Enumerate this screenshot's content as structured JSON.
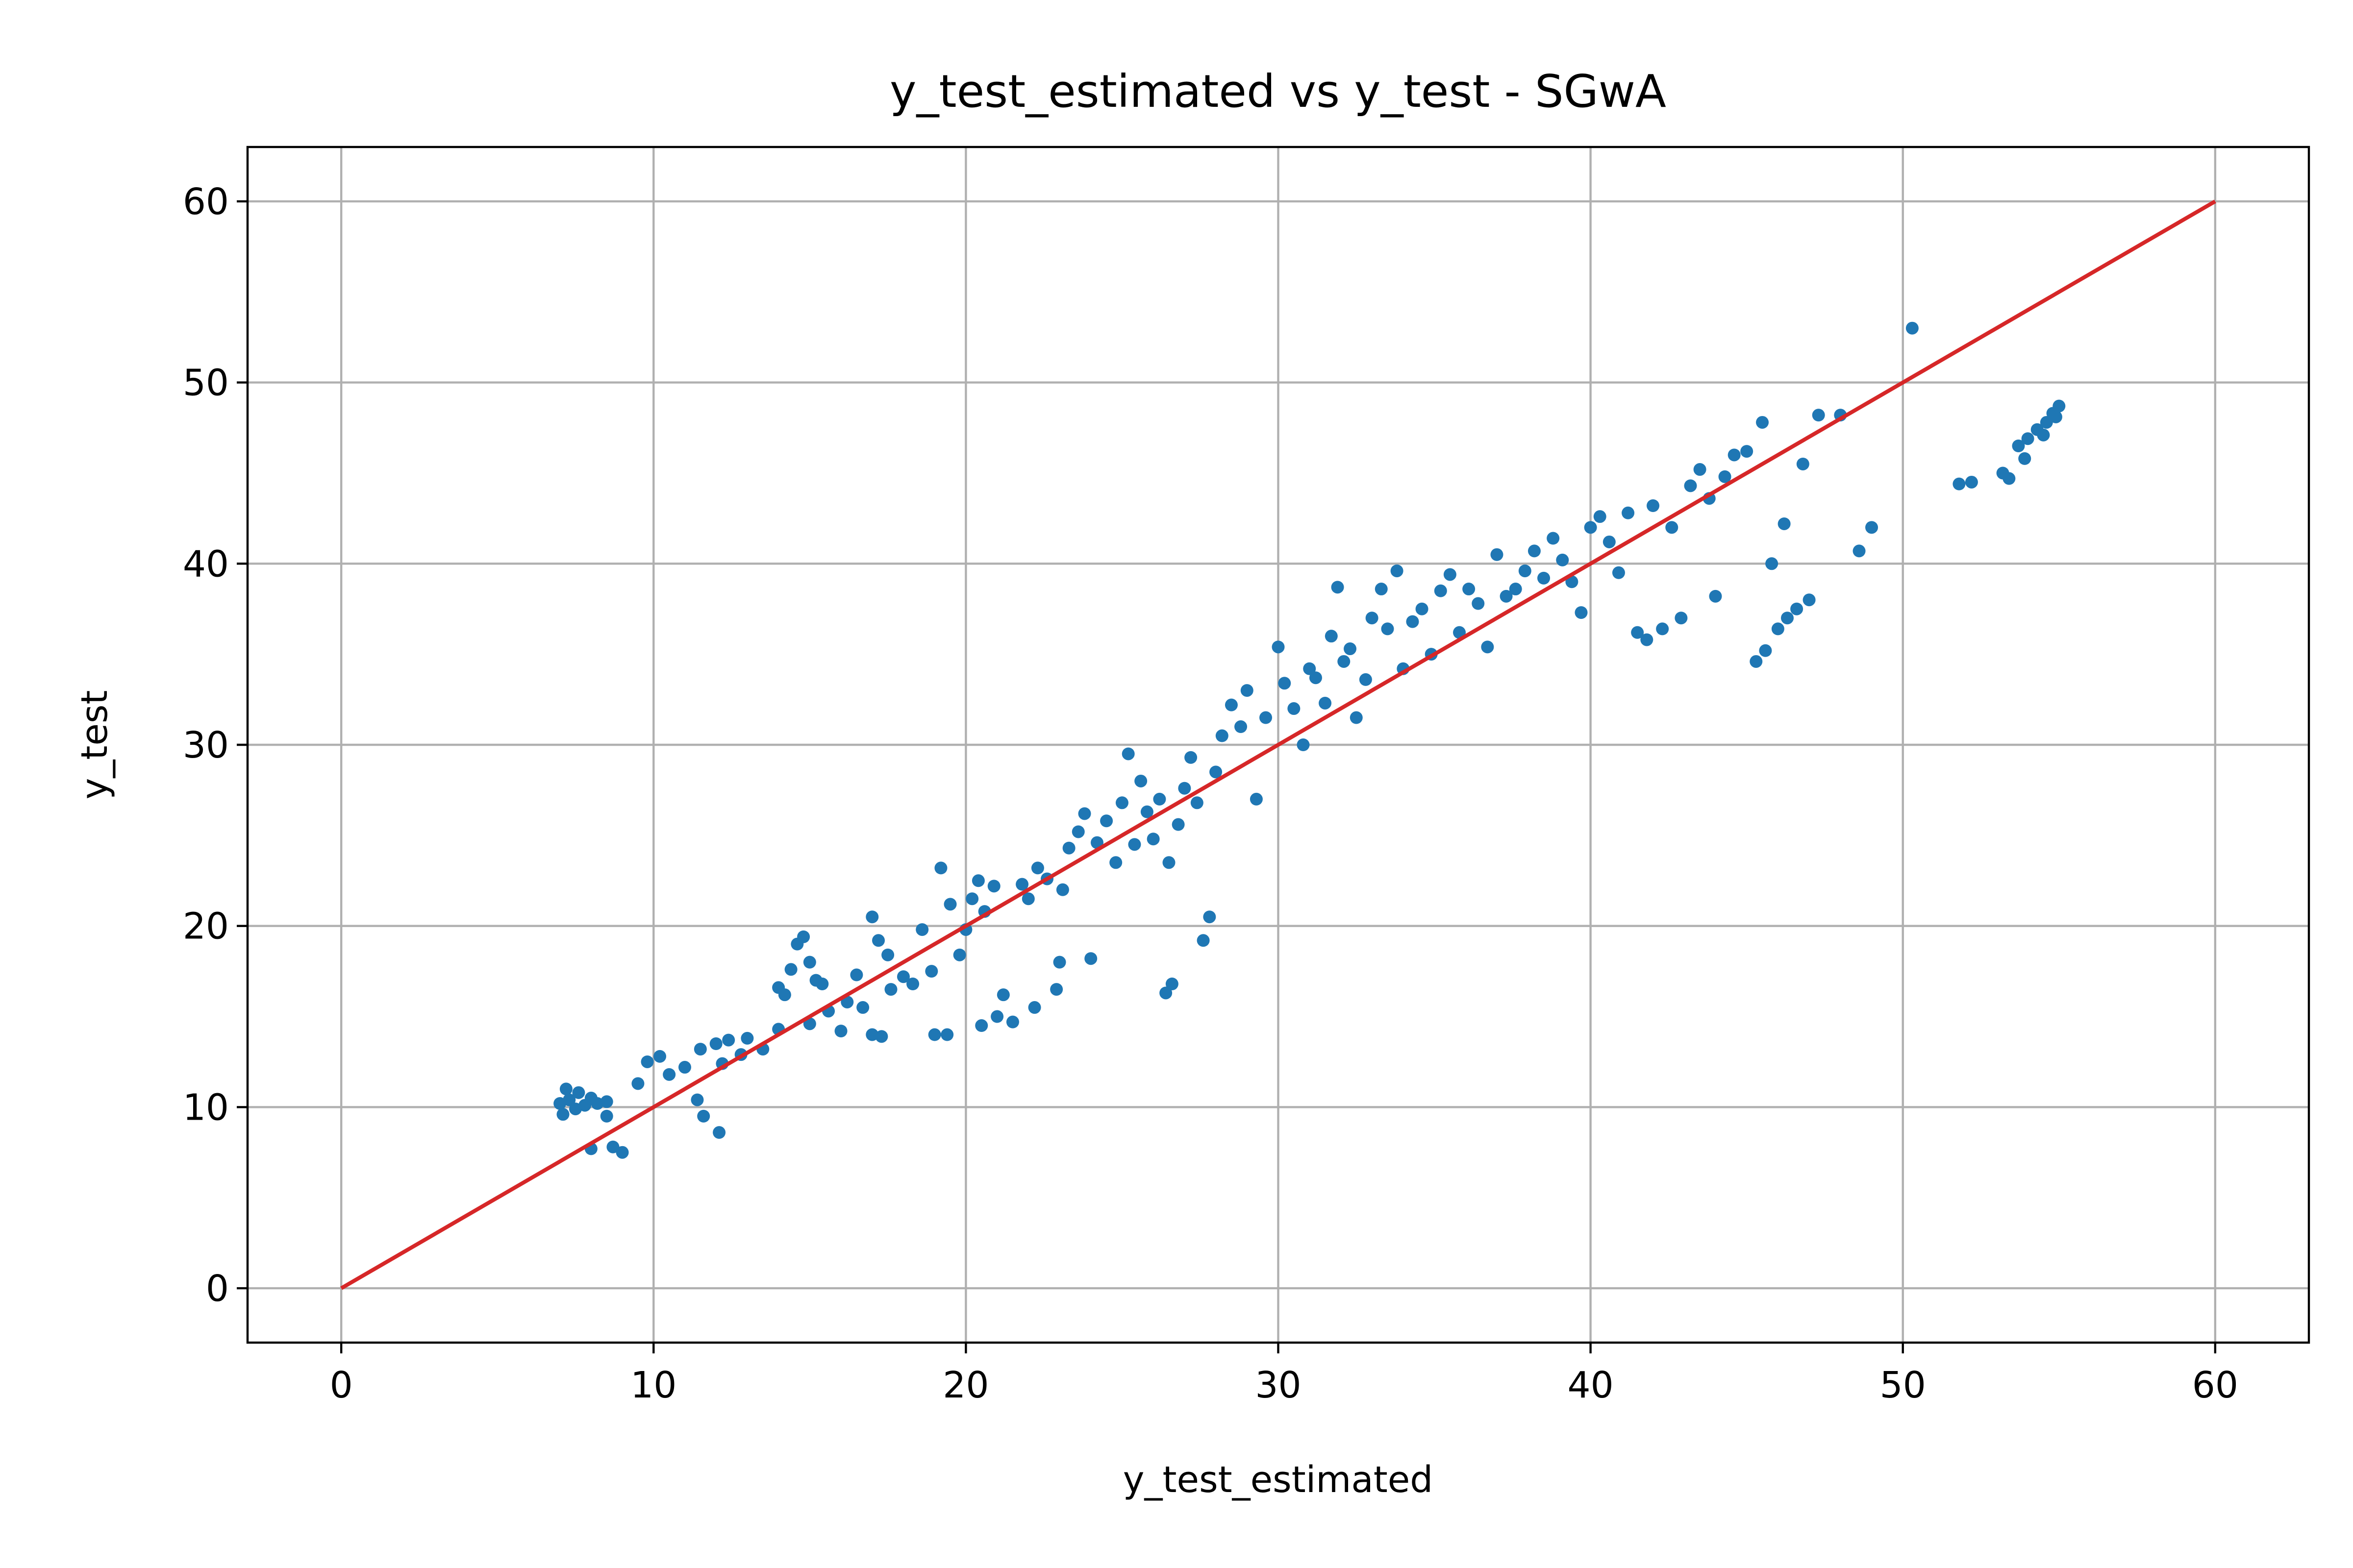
{
  "chart_data": {
    "type": "scatter",
    "title": "y_test_estimated vs y_test - SGwA",
    "xlabel": "y_test_estimated",
    "ylabel": "y_test",
    "xlim": [
      -3,
      63
    ],
    "ylim": [
      -3,
      63
    ],
    "xticks": [
      0,
      10,
      20,
      30,
      40,
      50,
      60
    ],
    "yticks": [
      0,
      10,
      20,
      30,
      40,
      50,
      60
    ],
    "grid": true,
    "legend": "none",
    "colors": {
      "points": "#1f77b4",
      "reference_line": "#d62728",
      "grid": "#b0b0b0"
    },
    "series": [
      {
        "kind": "points",
        "points": [
          [
            7.0,
            10.2
          ],
          [
            7.1,
            9.6
          ],
          [
            7.2,
            11.0
          ],
          [
            7.3,
            10.4
          ],
          [
            7.5,
            9.9
          ],
          [
            7.6,
            10.8
          ],
          [
            7.8,
            10.1
          ],
          [
            8.0,
            10.5
          ],
          [
            8.2,
            10.2
          ],
          [
            8.5,
            10.3
          ],
          [
            8.0,
            7.7
          ],
          [
            8.7,
            7.8
          ],
          [
            9.0,
            7.5
          ],
          [
            8.5,
            9.5
          ],
          [
            9.5,
            11.3
          ],
          [
            9.8,
            12.5
          ],
          [
            10.2,
            12.8
          ],
          [
            10.5,
            11.8
          ],
          [
            11.0,
            12.2
          ],
          [
            11.5,
            13.2
          ],
          [
            12.0,
            13.5
          ],
          [
            12.2,
            12.4
          ],
          [
            11.4,
            10.4
          ],
          [
            11.6,
            9.5
          ],
          [
            12.1,
            8.6
          ],
          [
            12.4,
            13.7
          ],
          [
            12.8,
            12.9
          ],
          [
            13.0,
            13.8
          ],
          [
            13.5,
            13.2
          ],
          [
            14.0,
            14.3
          ],
          [
            14.0,
            16.6
          ],
          [
            14.2,
            16.2
          ],
          [
            14.4,
            17.6
          ],
          [
            14.6,
            19.0
          ],
          [
            14.8,
            19.4
          ],
          [
            15.0,
            18.0
          ],
          [
            15.2,
            17.0
          ],
          [
            15.4,
            16.8
          ],
          [
            15.0,
            14.6
          ],
          [
            15.6,
            15.3
          ],
          [
            16.0,
            14.2
          ],
          [
            16.2,
            15.8
          ],
          [
            16.5,
            17.3
          ],
          [
            16.7,
            15.5
          ],
          [
            17.0,
            20.5
          ],
          [
            17.2,
            19.2
          ],
          [
            17.5,
            18.4
          ],
          [
            17.0,
            14.0
          ],
          [
            17.3,
            13.9
          ],
          [
            17.6,
            16.5
          ],
          [
            18.0,
            17.2
          ],
          [
            18.3,
            16.8
          ],
          [
            18.6,
            19.8
          ],
          [
            18.9,
            17.5
          ],
          [
            19.2,
            23.2
          ],
          [
            19.5,
            21.2
          ],
          [
            19.0,
            14.0
          ],
          [
            19.4,
            14.0
          ],
          [
            19.8,
            18.4
          ],
          [
            20.0,
            19.8
          ],
          [
            20.2,
            21.5
          ],
          [
            20.4,
            22.5
          ],
          [
            20.6,
            20.8
          ],
          [
            20.9,
            22.2
          ],
          [
            20.5,
            14.5
          ],
          [
            21.0,
            15.0
          ],
          [
            21.2,
            16.2
          ],
          [
            21.5,
            14.7
          ],
          [
            21.8,
            22.3
          ],
          [
            22.0,
            21.5
          ],
          [
            22.3,
            23.2
          ],
          [
            22.6,
            22.6
          ],
          [
            22.2,
            15.5
          ],
          [
            22.9,
            16.5
          ],
          [
            23.3,
            24.3
          ],
          [
            23.6,
            25.2
          ],
          [
            23.1,
            22.0
          ],
          [
            23.8,
            26.2
          ],
          [
            23.0,
            18.0
          ],
          [
            24.0,
            18.2
          ],
          [
            24.2,
            24.6
          ],
          [
            24.5,
            25.8
          ],
          [
            24.8,
            23.5
          ],
          [
            25.0,
            26.8
          ],
          [
            25.2,
            29.5
          ],
          [
            25.4,
            24.5
          ],
          [
            25.6,
            28.0
          ],
          [
            25.8,
            26.3
          ],
          [
            26.0,
            24.8
          ],
          [
            26.2,
            27.0
          ],
          [
            26.4,
            16.3
          ],
          [
            26.6,
            16.8
          ],
          [
            26.5,
            23.5
          ],
          [
            26.8,
            25.6
          ],
          [
            27.0,
            27.6
          ],
          [
            27.2,
            29.3
          ],
          [
            27.4,
            26.8
          ],
          [
            27.6,
            19.2
          ],
          [
            27.8,
            20.5
          ],
          [
            28.0,
            28.5
          ],
          [
            28.2,
            30.5
          ],
          [
            28.5,
            32.2
          ],
          [
            28.8,
            31.0
          ],
          [
            29.0,
            33.0
          ],
          [
            29.3,
            27.0
          ],
          [
            29.6,
            31.5
          ],
          [
            30.0,
            35.4
          ],
          [
            30.2,
            33.4
          ],
          [
            30.5,
            32.0
          ],
          [
            30.8,
            30.0
          ],
          [
            31.0,
            34.2
          ],
          [
            31.2,
            33.7
          ],
          [
            31.5,
            32.3
          ],
          [
            31.7,
            36.0
          ],
          [
            31.9,
            38.7
          ],
          [
            32.1,
            34.6
          ],
          [
            32.3,
            35.3
          ],
          [
            32.5,
            31.5
          ],
          [
            32.8,
            33.6
          ],
          [
            33.0,
            37.0
          ],
          [
            33.3,
            38.6
          ],
          [
            33.5,
            36.4
          ],
          [
            33.8,
            39.6
          ],
          [
            34.0,
            34.2
          ],
          [
            34.3,
            36.8
          ],
          [
            34.6,
            37.5
          ],
          [
            34.9,
            35.0
          ],
          [
            35.2,
            38.5
          ],
          [
            35.5,
            39.4
          ],
          [
            35.8,
            36.2
          ],
          [
            36.1,
            38.6
          ],
          [
            36.4,
            37.8
          ],
          [
            36.7,
            35.4
          ],
          [
            37.0,
            40.5
          ],
          [
            37.3,
            38.2
          ],
          [
            37.6,
            38.6
          ],
          [
            37.9,
            39.6
          ],
          [
            38.2,
            40.7
          ],
          [
            38.5,
            39.2
          ],
          [
            38.8,
            41.4
          ],
          [
            39.1,
            40.2
          ],
          [
            39.4,
            39.0
          ],
          [
            39.7,
            37.3
          ],
          [
            40.0,
            42.0
          ],
          [
            40.3,
            42.6
          ],
          [
            40.6,
            41.2
          ],
          [
            40.9,
            39.5
          ],
          [
            41.2,
            42.8
          ],
          [
            41.5,
            36.2
          ],
          [
            41.8,
            35.8
          ],
          [
            42.0,
            43.2
          ],
          [
            42.3,
            36.4
          ],
          [
            42.6,
            42.0
          ],
          [
            42.9,
            37.0
          ],
          [
            43.2,
            44.3
          ],
          [
            43.5,
            45.2
          ],
          [
            43.8,
            43.6
          ],
          [
            44.0,
            38.2
          ],
          [
            44.3,
            44.8
          ],
          [
            44.6,
            46.0
          ],
          [
            45.0,
            46.2
          ],
          [
            45.3,
            34.6
          ],
          [
            45.6,
            35.2
          ],
          [
            45.5,
            47.8
          ],
          [
            45.8,
            40.0
          ],
          [
            46.0,
            36.4
          ],
          [
            46.3,
            37.0
          ],
          [
            46.6,
            37.5
          ],
          [
            47.0,
            38.0
          ],
          [
            47.3,
            48.2
          ],
          [
            46.2,
            42.2
          ],
          [
            46.8,
            45.5
          ],
          [
            48.0,
            48.2
          ],
          [
            48.6,
            40.7
          ],
          [
            49.0,
            42.0
          ],
          [
            50.3,
            53.0
          ],
          [
            51.8,
            44.4
          ],
          [
            52.2,
            44.5
          ],
          [
            53.2,
            45.0
          ],
          [
            53.4,
            44.7
          ],
          [
            53.7,
            46.5
          ],
          [
            54.0,
            46.9
          ],
          [
            54.3,
            47.4
          ],
          [
            54.6,
            47.8
          ],
          [
            54.8,
            48.3
          ],
          [
            55.0,
            48.7
          ],
          [
            53.9,
            45.8
          ],
          [
            54.5,
            47.1
          ],
          [
            54.9,
            48.1
          ]
        ]
      },
      {
        "kind": "line",
        "x": [
          0,
          60
        ],
        "y": [
          0,
          60
        ]
      }
    ]
  }
}
